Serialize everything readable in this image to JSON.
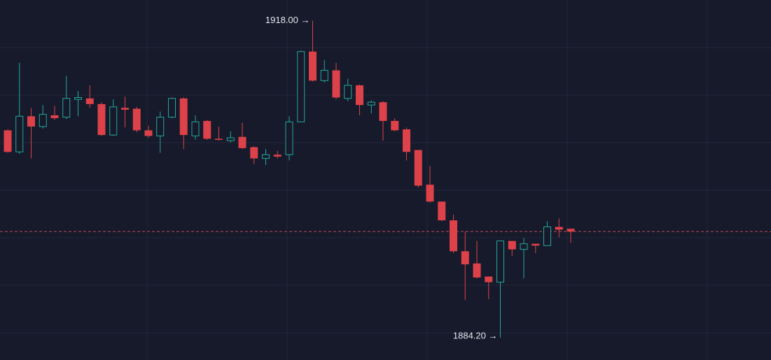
{
  "chart_data": {
    "type": "candlestick",
    "open": [
      1906.3,
      1904.0,
      1907.8,
      1906.7,
      1907.9,
      1907.7,
      1909.6,
      1909.7,
      1909.1,
      1905.8,
      1908.7,
      1908.6,
      1906.3,
      1905.7,
      1907.7,
      1909.7,
      1905.7,
      1907.3,
      1905.4,
      1905.2,
      1905.6,
      1904.5,
      1903.3,
      1903.7,
      1903.7,
      1907.2,
      1914.7,
      1911.6,
      1912.7,
      1909.7,
      1911.1,
      1909.0,
      1909.3,
      1907.3,
      1906.4,
      1904.2,
      1900.5,
      1898.7,
      1896.7,
      1893.4,
      1892.1,
      1890.7,
      1890.1,
      1894.5,
      1893.6,
      1894.2,
      1894.0,
      1896.0,
      1895.8
    ],
    "high": [
      1906.4,
      1913.5,
      1908.7,
      1909.0,
      1908.9,
      1912.1,
      1910.5,
      1911.1,
      1909.3,
      1909.6,
      1909.9,
      1908.8,
      1906.8,
      1908.3,
      1909.8,
      1909.8,
      1907.9,
      1907.4,
      1906.7,
      1906.2,
      1907.1,
      1904.6,
      1904.3,
      1904.1,
      1907.8,
      1914.8,
      1918.0,
      1913.8,
      1913.5,
      1911.8,
      1911.2,
      1909.5,
      1909.4,
      1907.6,
      1906.6,
      1904.2,
      1902.5,
      1898.7,
      1897.3,
      1895.5,
      1894.5,
      1890.7,
      1894.5,
      1894.5,
      1894.8,
      1894.2,
      1896.6,
      1896.9,
      1895.8
    ],
    "low": [
      1903.9,
      1903.8,
      1903.3,
      1906.5,
      1907.4,
      1907.5,
      1907.8,
      1908.7,
      1905.7,
      1905.7,
      1906.6,
      1906.1,
      1905.5,
      1903.9,
      1907.6,
      1904.3,
      1905.3,
      1905.3,
      1905.2,
      1905.0,
      1904.3,
      1902.7,
      1902.6,
      1903.3,
      1903.1,
      1907.2,
      1911.5,
      1911.4,
      1909.6,
      1909.4,
      1907.9,
      1908.1,
      1905.2,
      1906.2,
      1903.1,
      1900.2,
      1898.6,
      1896.6,
      1893.2,
      1888.2,
      1890.5,
      1888.3,
      1884.2,
      1892.9,
      1890.5,
      1893.2,
      1894.0,
      1894.9,
      1894.3
    ],
    "close": [
      1904.0,
      1907.8,
      1906.7,
      1908.0,
      1907.6,
      1909.7,
      1909.8,
      1909.1,
      1905.8,
      1908.8,
      1908.5,
      1906.3,
      1905.7,
      1907.7,
      1909.7,
      1905.8,
      1907.2,
      1905.4,
      1905.3,
      1905.5,
      1904.4,
      1903.3,
      1903.7,
      1903.5,
      1907.2,
      1914.7,
      1911.6,
      1912.7,
      1909.8,
      1911.1,
      1909.0,
      1909.3,
      1907.3,
      1906.3,
      1904.0,
      1900.4,
      1898.7,
      1896.7,
      1893.4,
      1892.0,
      1890.6,
      1890.1,
      1894.5,
      1893.6,
      1894.2,
      1894.0,
      1896.0,
      1895.7,
      1895.5
    ],
    "ylim": [
      1881.8,
      1920.2
    ],
    "up_color": "#26a69a",
    "down_color": "#dd4149",
    "last_line_color": "#e0525a",
    "high_label": "1918.00 →",
    "low_label": "1884.20 →"
  }
}
